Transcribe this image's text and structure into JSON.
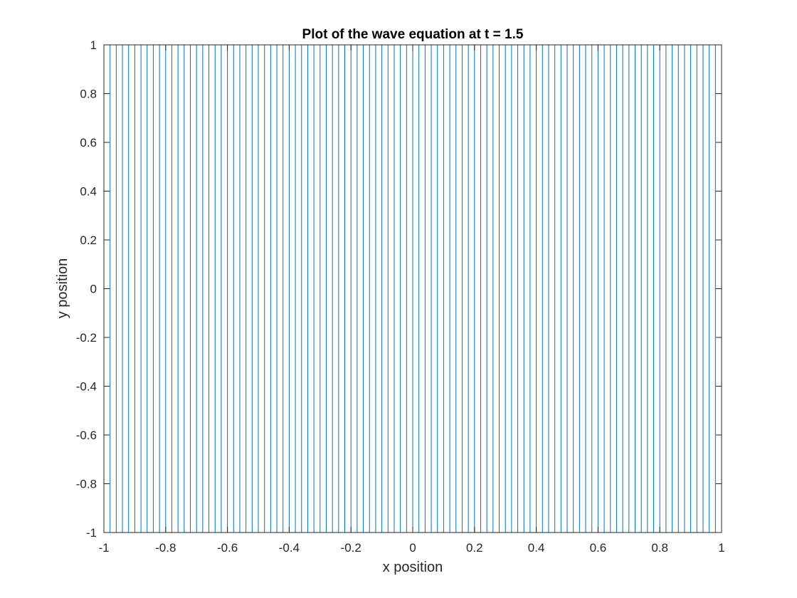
{
  "chart_data": {
    "type": "line",
    "title": "Plot of the wave equation at t = 1.5",
    "xlabel": "x position",
    "ylabel": "y position",
    "xlim": [
      -1,
      1
    ],
    "ylim": [
      -1,
      1
    ],
    "xticks": [
      -1,
      -0.8,
      -0.6,
      -0.4,
      -0.2,
      0,
      0.2,
      0.4,
      0.6,
      0.8,
      1
    ],
    "xtick_labels": [
      "-1",
      "-0.8",
      "-0.6",
      "-0.4",
      "-0.2",
      "0",
      "0.2",
      "0.4",
      "0.6",
      "0.8",
      "1"
    ],
    "yticks": [
      -1,
      -0.8,
      -0.6,
      -0.4,
      -0.2,
      0,
      0.2,
      0.4,
      0.6,
      0.8,
      1
    ],
    "ytick_labels": [
      "-1",
      "-0.8",
      "-0.6",
      "-0.4",
      "-0.2",
      "0",
      "0.2",
      "0.4",
      "0.6",
      "0.8",
      "1"
    ],
    "grid": false,
    "line_color": "#0072BD",
    "series": [
      {
        "description_of_marks": "vertical lines spanning y from -1 to 1",
        "x": [
          -1,
          -0.98,
          -0.96,
          -0.94,
          -0.92,
          -0.9,
          -0.88,
          -0.86,
          -0.84,
          -0.82,
          -0.8,
          -0.78,
          -0.76,
          -0.74,
          -0.72,
          -0.7,
          -0.68,
          -0.66,
          -0.64,
          -0.62,
          -0.6,
          -0.58,
          -0.56,
          -0.54,
          -0.52,
          -0.5,
          -0.48,
          -0.46,
          -0.44,
          -0.42,
          -0.4,
          -0.38,
          -0.36,
          -0.34,
          -0.32,
          -0.3,
          -0.28,
          -0.26,
          -0.24,
          -0.22,
          -0.2,
          -0.18,
          -0.16,
          -0.14,
          -0.12,
          -0.1,
          -0.08,
          -0.06,
          -0.04,
          -0.02,
          0,
          0.02,
          0.04,
          0.06,
          0.08,
          0.1,
          0.12,
          0.14,
          0.16,
          0.18,
          0.2,
          0.22,
          0.24,
          0.26,
          0.28,
          0.3,
          0.32,
          0.34,
          0.36,
          0.38,
          0.4,
          0.42,
          0.44,
          0.46,
          0.48,
          0.5,
          0.52,
          0.54,
          0.56,
          0.58,
          0.6,
          0.62,
          0.64,
          0.66,
          0.68,
          0.7,
          0.72,
          0.74,
          0.76,
          0.78,
          0.8,
          0.82,
          0.84,
          0.86,
          0.88,
          0.9,
          0.92,
          0.94,
          0.96,
          0.98,
          1
        ],
        "y_range": [
          -1,
          1
        ]
      }
    ]
  }
}
